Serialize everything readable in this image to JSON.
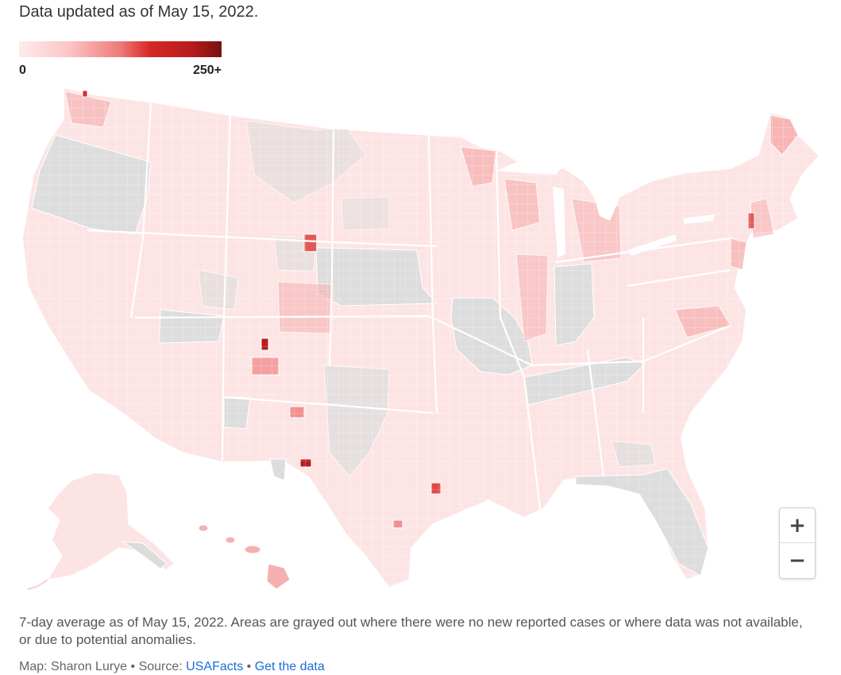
{
  "header": {
    "updated_text": "Data updated as of May 15, 2022."
  },
  "legend": {
    "min_label": "0",
    "max_label": "250+",
    "colors": [
      "#ffecec",
      "#fbc4c4",
      "#ee7a7a",
      "#d62626",
      "#b81c1c",
      "#7a1010"
    ]
  },
  "map": {
    "no_data_color": "#dcdcdc",
    "border_color": "#ffffff",
    "low_color": "#fde3e3",
    "mid_color": "#f7b3b3",
    "high_color": "#e05a5a",
    "max_color": "#b81c1c"
  },
  "zoom": {
    "in_label": "+",
    "out_label": "−"
  },
  "footer": {
    "note": "7-day average as of May 15, 2022. Areas are grayed out where there were no new reported cases or where data was not available, or due to potential anomalies.",
    "map_credit": "Map: Sharon Lurye",
    "sep1": " • ",
    "source_prefix": "Source: ",
    "source_link": "USAFacts",
    "sep2": " • ",
    "data_link": "Get the data"
  }
}
